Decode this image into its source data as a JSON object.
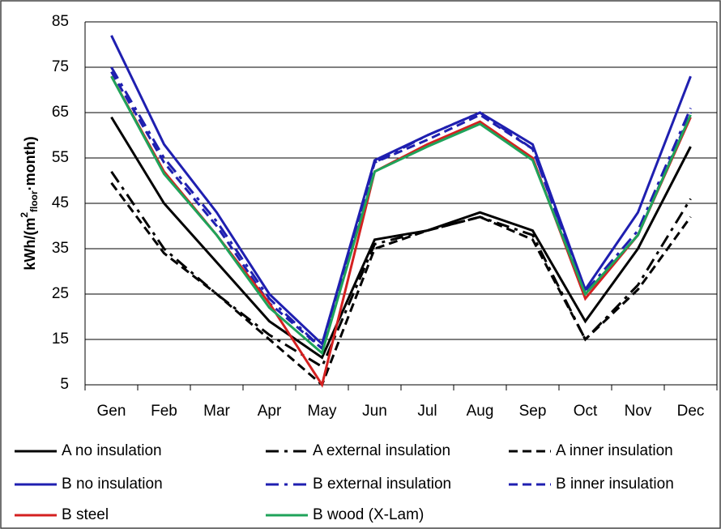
{
  "chart_data": {
    "type": "line",
    "y_label": [
      "kWh/(m",
      "2",
      "floor",
      "·month)"
    ],
    "categories": [
      "Gen",
      "Feb",
      "Mar",
      "Apr",
      "May",
      "Jun",
      "Jul",
      "Aug",
      "Sep",
      "Oct",
      "Nov",
      "Dec"
    ],
    "ylim": [
      5,
      85
    ],
    "yticks": [
      5,
      15,
      25,
      35,
      45,
      55,
      65,
      75,
      85
    ],
    "grid": true,
    "series": [
      {
        "name": "A no insulation",
        "color": "#000000",
        "dash": "solid",
        "values": [
          64,
          45,
          32,
          19,
          11,
          37,
          39,
          43,
          39,
          19,
          35,
          57.5
        ]
      },
      {
        "name": "A external insulation",
        "color": "#000000",
        "dash": "dashdot",
        "values": [
          52,
          35,
          25,
          16,
          9,
          36,
          39,
          42,
          38,
          15,
          27,
          46
        ]
      },
      {
        "name": "A inner insulation",
        "color": "#000000",
        "dash": "dash",
        "values": [
          49.5,
          34,
          25,
          15,
          5,
          35,
          39,
          42,
          37,
          15,
          26,
          42
        ]
      },
      {
        "name": "B no insulation",
        "color": "#1f1fb0",
        "dash": "solid",
        "values": [
          82,
          58,
          43,
          25,
          14,
          54.5,
          60,
          65,
          58,
          26,
          43,
          73
        ]
      },
      {
        "name": "B external insulation",
        "color": "#1f1fb0",
        "dash": "dashdot",
        "values": [
          75,
          55,
          41,
          24,
          13,
          54,
          60,
          65,
          57,
          25.5,
          39,
          66
        ]
      },
      {
        "name": "B inner insulation",
        "color": "#1f1fb0",
        "dash": "dash",
        "values": [
          74,
          54,
          40,
          23,
          13,
          54,
          59,
          64.5,
          57,
          25,
          38,
          65
        ]
      },
      {
        "name": "B steel",
        "color": "#d42020",
        "dash": "solid",
        "values": [
          73,
          52,
          38,
          23,
          5,
          52,
          58,
          63,
          55,
          24,
          38,
          64
        ]
      },
      {
        "name": "B wood (X-Lam)",
        "color": "#1fa35a",
        "dash": "solid",
        "values": [
          73,
          51.5,
          38,
          22,
          12,
          52,
          57.5,
          62.5,
          54.5,
          25,
          38,
          64.5
        ]
      }
    ]
  }
}
